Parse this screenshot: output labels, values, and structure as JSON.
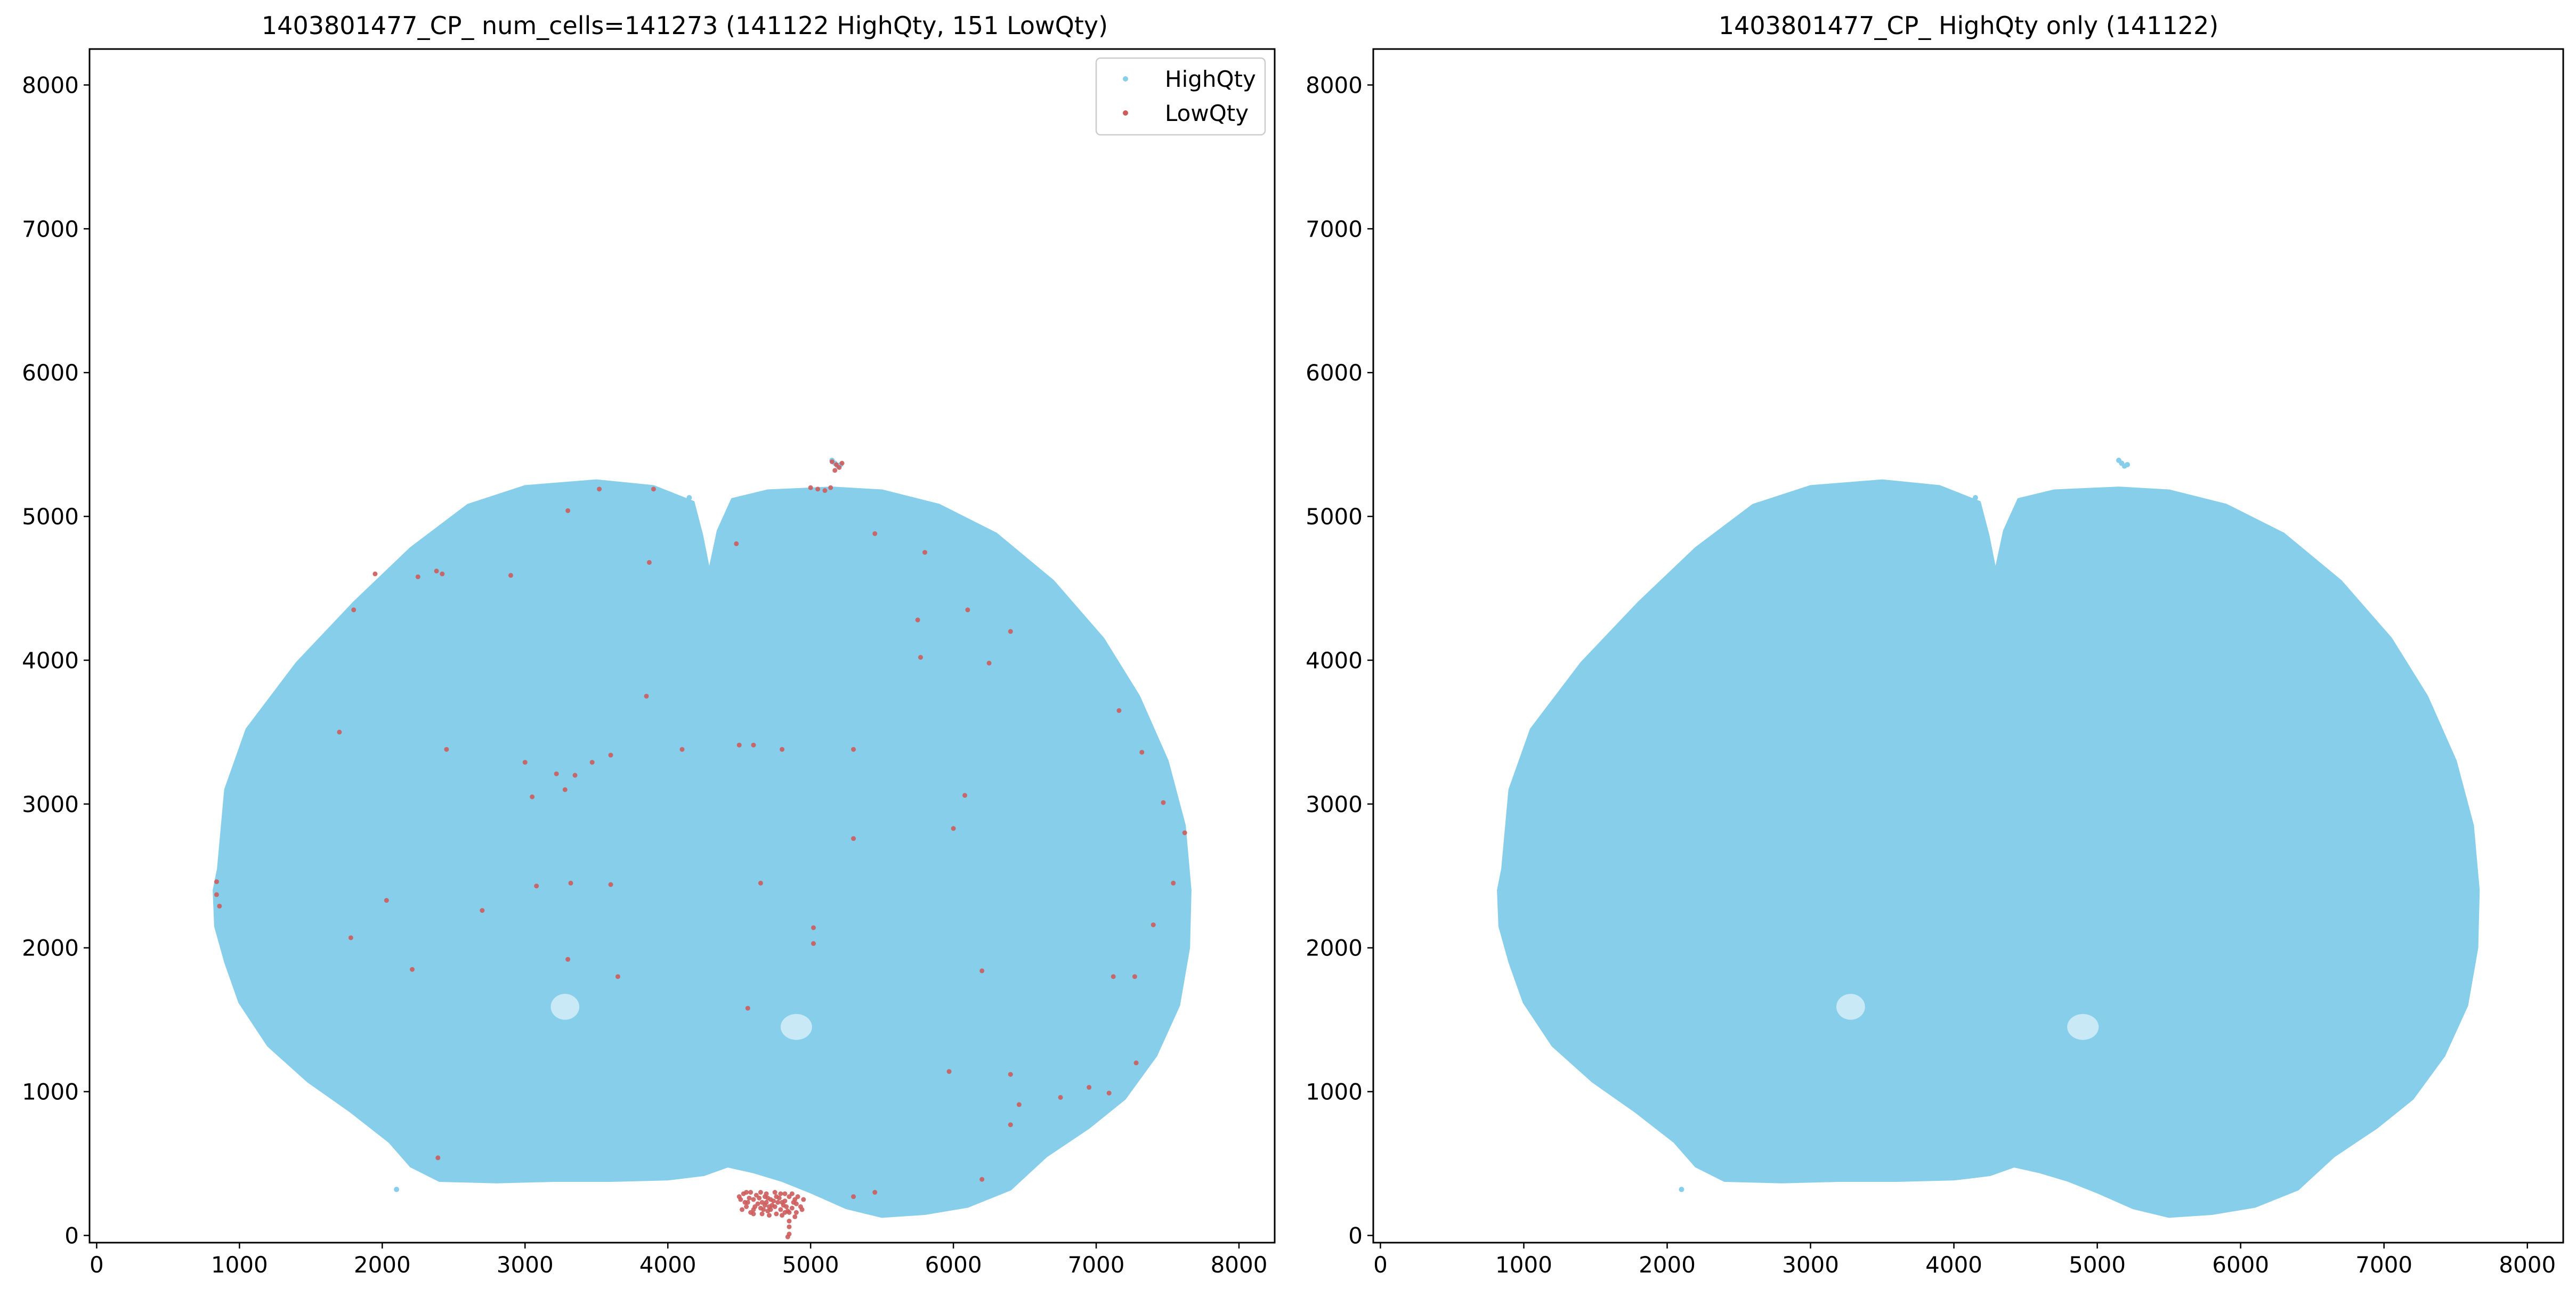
{
  "colors": {
    "high": "#87ceeb",
    "low": "#cd5c5c",
    "axis": "#000000",
    "background": "#ffffff"
  },
  "chart_data": [
    {
      "type": "scatter",
      "title": "1403801477_CP_ num_cells=141273 (141122 HighQty, 151 LowQty)",
      "xlabel": "",
      "ylabel": "",
      "xlim": [
        -50,
        8250
      ],
      "ylim": [
        -50,
        8250
      ],
      "xticks": [
        "0",
        "1000",
        "2000",
        "3000",
        "4000",
        "5000",
        "6000",
        "7000",
        "8000"
      ],
      "yticks": [
        "0",
        "1000",
        "2000",
        "3000",
        "4000",
        "5000",
        "6000",
        "7000",
        "8000"
      ],
      "legend": {
        "placement": "top-right",
        "entries": [
          "HighQty",
          "LowQty"
        ]
      },
      "series": [
        {
          "name": "HighQty",
          "color": "#87ceeb",
          "count": 141122,
          "outline": [
            [
              850,
              2550
            ],
            [
              820,
              2400
            ],
            [
              830,
              2150
            ],
            [
              900,
              1900
            ],
            [
              1000,
              1620
            ],
            [
              1200,
              1320
            ],
            [
              1480,
              1070
            ],
            [
              1780,
              860
            ],
            [
              2050,
              650
            ],
            [
              2200,
              480
            ],
            [
              2400,
              380
            ],
            [
              2800,
              370
            ],
            [
              3200,
              380
            ],
            [
              3600,
              380
            ],
            [
              4000,
              390
            ],
            [
              4250,
              420
            ],
            [
              4420,
              480
            ],
            [
              4600,
              440
            ],
            [
              4800,
              380
            ],
            [
              5000,
              300
            ],
            [
              5250,
              190
            ],
            [
              5500,
              130
            ],
            [
              5800,
              150
            ],
            [
              6100,
              200
            ],
            [
              6400,
              320
            ],
            [
              6650,
              550
            ],
            [
              6950,
              750
            ],
            [
              7200,
              950
            ],
            [
              7420,
              1250
            ],
            [
              7580,
              1600
            ],
            [
              7650,
              2000
            ],
            [
              7660,
              2400
            ],
            [
              7620,
              2850
            ],
            [
              7500,
              3300
            ],
            [
              7300,
              3750
            ],
            [
              7050,
              4150
            ],
            [
              6700,
              4550
            ],
            [
              6300,
              4880
            ],
            [
              5900,
              5080
            ],
            [
              5500,
              5180
            ],
            [
              5150,
              5200
            ],
            [
              4700,
              5180
            ],
            [
              4450,
              5120
            ],
            [
              4350,
              4900
            ],
            [
              4290,
              4620
            ],
            [
              4240,
              4870
            ],
            [
              4180,
              5100
            ],
            [
              3900,
              5210
            ],
            [
              3500,
              5250
            ],
            [
              3000,
              5210
            ],
            [
              2600,
              5080
            ],
            [
              2200,
              4780
            ],
            [
              1800,
              4400
            ],
            [
              1400,
              3980
            ],
            [
              1050,
              3520
            ],
            [
              900,
              3100
            ]
          ],
          "holes": [
            {
              "x": 3280,
              "y": 1590,
              "rx": 100,
              "ry": 90
            },
            {
              "x": 4900,
              "y": 1450,
              "rx": 110,
              "ry": 90
            }
          ],
          "extras": [
            [
              5150,
              5390
            ],
            [
              5170,
              5370
            ],
            [
              5190,
              5350
            ],
            [
              5210,
              5360
            ],
            [
              4150,
              5130
            ],
            [
              2100,
              320
            ],
            [
              5550,
              5050
            ]
          ]
        },
        {
          "name": "LowQty",
          "color": "#cd5c5c",
          "count": 151,
          "points": [
            [
              5150,
              5380
            ],
            [
              5180,
              5360
            ],
            [
              5200,
              5340
            ],
            [
              5220,
              5370
            ],
            [
              5170,
              5320
            ],
            [
              5000,
              5200
            ],
            [
              5050,
              5190
            ],
            [
              5100,
              5180
            ],
            [
              5140,
              5200
            ],
            [
              3520,
              5190
            ],
            [
              3900,
              5190
            ],
            [
              3300,
              5040
            ],
            [
              4480,
              4810
            ],
            [
              2380,
              4620
            ],
            [
              2420,
              4600
            ],
            [
              1950,
              4600
            ],
            [
              2250,
              4580
            ],
            [
              2900,
              4590
            ],
            [
              1800,
              4350
            ],
            [
              5450,
              4880
            ],
            [
              5800,
              4750
            ],
            [
              3870,
              4680
            ],
            [
              5750,
              4280
            ],
            [
              6100,
              4350
            ],
            [
              6400,
              4200
            ],
            [
              6250,
              3980
            ],
            [
              5770,
              4020
            ],
            [
              3850,
              3750
            ],
            [
              1700,
              3500
            ],
            [
              2450,
              3380
            ],
            [
              3000,
              3290
            ],
            [
              3220,
              3210
            ],
            [
              3470,
              3290
            ],
            [
              3600,
              3340
            ],
            [
              4100,
              3380
            ],
            [
              4500,
              3410
            ],
            [
              4600,
              3410
            ],
            [
              4800,
              3380
            ],
            [
              5300,
              3380
            ],
            [
              3050,
              3050
            ],
            [
              3280,
              3100
            ],
            [
              3350,
              3200
            ],
            [
              5300,
              2760
            ],
            [
              6000,
              2830
            ],
            [
              7160,
              3650
            ],
            [
              7320,
              3360
            ],
            [
              7470,
              3010
            ],
            [
              7620,
              2800
            ],
            [
              6080,
              3060
            ],
            [
              3080,
              2430
            ],
            [
              3320,
              2450
            ],
            [
              3600,
              2440
            ],
            [
              2030,
              2330
            ],
            [
              2700,
              2260
            ],
            [
              4650,
              2450
            ],
            [
              5020,
              2140
            ],
            [
              7540,
              2450
            ],
            [
              7400,
              2160
            ],
            [
              1780,
              2070
            ],
            [
              3300,
              1920
            ],
            [
              5020,
              2030
            ],
            [
              6200,
              1840
            ],
            [
              5970,
              1140
            ],
            [
              6400,
              1120
            ],
            [
              2210,
              1850
            ],
            [
              3650,
              1800
            ],
            [
              7120,
              1800
            ],
            [
              7270,
              1800
            ],
            [
              7280,
              1200
            ],
            [
              6460,
              910
            ],
            [
              6750,
              960
            ],
            [
              6950,
              1030
            ],
            [
              7090,
              990
            ],
            [
              6400,
              770
            ],
            [
              6200,
              390
            ],
            [
              5450,
              300
            ],
            [
              5300,
              270
            ],
            [
              2390,
              540
            ],
            [
              840,
              2460
            ],
            [
              840,
              2370
            ],
            [
              860,
              2290
            ],
            [
              4560,
              1580
            ],
            [
              4500,
              270
            ],
            [
              4550,
              300
            ],
            [
              4600,
              250
            ],
            [
              4650,
              300
            ],
            [
              4700,
              260
            ],
            [
              4750,
              300
            ],
            [
              4800,
              230
            ],
            [
              4850,
              270
            ],
            [
              4900,
              220
            ],
            [
              4550,
              200
            ],
            [
              4650,
              190
            ],
            [
              4750,
              200
            ],
            [
              4850,
              160
            ],
            [
              4520,
              180
            ],
            [
              4600,
              150
            ],
            [
              4700,
              170
            ],
            [
              4800,
              140
            ],
            [
              4900,
              160
            ],
            [
              4850,
              100
            ],
            [
              4850,
              60
            ],
            [
              4850,
              10
            ],
            [
              4840,
              -10
            ],
            [
              4580,
              300
            ],
            [
              4620,
              280
            ],
            [
              4680,
              270
            ],
            [
              4720,
              250
            ],
            [
              4780,
              260
            ],
            [
              4820,
              240
            ],
            [
              4880,
              230
            ],
            [
              4560,
              230
            ],
            [
              4630,
              220
            ],
            [
              4690,
              230
            ],
            [
              4730,
              210
            ],
            [
              4770,
              230
            ],
            [
              4830,
              200
            ],
            [
              4870,
              190
            ],
            [
              4580,
              160
            ],
            [
              4660,
              150
            ],
            [
              4710,
              200
            ],
            [
              4790,
              180
            ],
            [
              4930,
              200
            ],
            [
              4510,
              250
            ],
            [
              4640,
              260
            ],
            [
              4740,
              240
            ],
            [
              4810,
              210
            ],
            [
              4890,
              250
            ],
            [
              4690,
              290
            ],
            [
              4610,
              200
            ],
            [
              4660,
              230
            ],
            [
              4720,
              180
            ],
            [
              4760,
              150
            ],
            [
              4840,
              170
            ],
            [
              4950,
              250
            ],
            [
              4530,
              290
            ],
            [
              4570,
              260
            ],
            [
              4670,
              180
            ],
            [
              4790,
              290
            ],
            [
              4870,
              290
            ],
            [
              4910,
              270
            ],
            [
              4600,
              180
            ],
            [
              4710,
              140
            ],
            [
              4760,
              270
            ],
            [
              4820,
              160
            ],
            [
              4540,
              230
            ],
            [
              4890,
              130
            ],
            [
              4940,
              180
            ],
            [
              4820,
              290
            ],
            [
              4680,
              210
            ]
          ]
        }
      ]
    },
    {
      "type": "scatter",
      "title": "1403801477_CP_ HighQty only (141122)",
      "xlabel": "",
      "ylabel": "",
      "xlim": [
        -50,
        8250
      ],
      "ylim": [
        -50,
        8250
      ],
      "xticks": [
        "0",
        "1000",
        "2000",
        "3000",
        "4000",
        "5000",
        "6000",
        "7000",
        "8000"
      ],
      "yticks": [
        "0",
        "1000",
        "2000",
        "3000",
        "4000",
        "5000",
        "6000",
        "7000",
        "8000"
      ],
      "series": [
        {
          "name": "HighQty",
          "color": "#87ceeb",
          "count": 141122,
          "same_shape_as": "panel 1 HighQty"
        }
      ]
    }
  ]
}
